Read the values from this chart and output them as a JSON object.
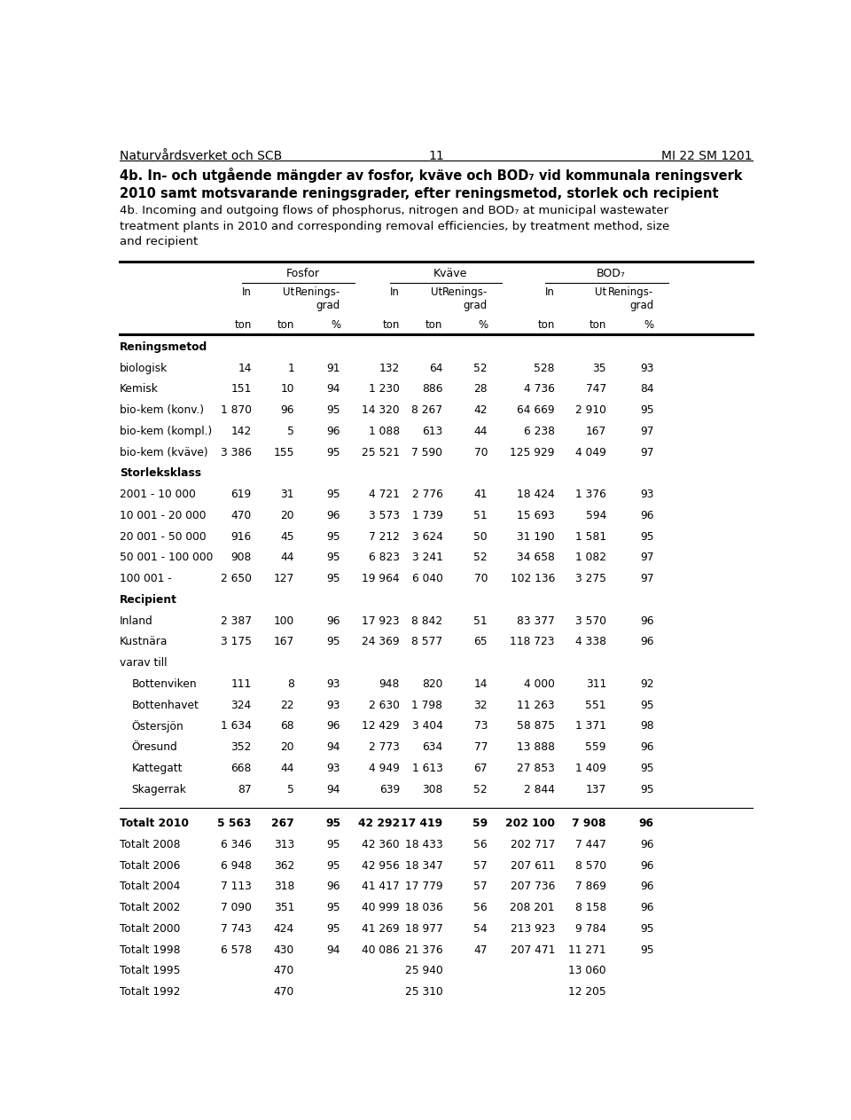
{
  "header_left": "Naturvårdsverket och SCB",
  "header_center": "11",
  "header_right": "MI 22 SM 1201",
  "title_sv": "4b. In- och utgående mängder av fosfor, kväve och BOD₇ vid kommunala reningsverk\n2010 samt motsvarande reningsgrader, efter reningsmetod, storlek och recipient",
  "title_en": "4b. Incoming and outgoing flows of phosphorus, nitrogen and BOD₇ at municipal wastewater\ntreatment plants in 2010 and corresponding removal efficiencies, by treatment method, size\nand recipient",
  "sections": [
    {
      "name": "Reningsmetod",
      "rows": [
        {
          "label": "biologisk",
          "bold": false,
          "indent": false,
          "values": [
            "14",
            "1",
            "91",
            "132",
            "64",
            "52",
            "528",
            "35",
            "93"
          ]
        },
        {
          "label": "Kemisk",
          "bold": false,
          "indent": false,
          "values": [
            "151",
            "10",
            "94",
            "1 230",
            "886",
            "28",
            "4 736",
            "747",
            "84"
          ]
        },
        {
          "label": "bio-kem (konv.)",
          "bold": false,
          "indent": false,
          "values": [
            "1 870",
            "96",
            "95",
            "14 320",
            "8 267",
            "42",
            "64 669",
            "2 910",
            "95"
          ]
        },
        {
          "label": "bio-kem (kompl.)",
          "bold": false,
          "indent": false,
          "values": [
            "142",
            "5",
            "96",
            "1 088",
            "613",
            "44",
            "6 238",
            "167",
            "97"
          ]
        },
        {
          "label": "bio-kem (kväve)",
          "bold": false,
          "indent": false,
          "values": [
            "3 386",
            "155",
            "95",
            "25 521",
            "7 590",
            "70",
            "125 929",
            "4 049",
            "97"
          ]
        }
      ]
    },
    {
      "name": "Storleksklass",
      "rows": [
        {
          "label": "2001 - 10 000",
          "bold": false,
          "indent": false,
          "values": [
            "619",
            "31",
            "95",
            "4 721",
            "2 776",
            "41",
            "18 424",
            "1 376",
            "93"
          ]
        },
        {
          "label": "10 001 - 20 000",
          "bold": false,
          "indent": false,
          "values": [
            "470",
            "20",
            "96",
            "3 573",
            "1 739",
            "51",
            "15 693",
            "594",
            "96"
          ]
        },
        {
          "label": "20 001 - 50 000",
          "bold": false,
          "indent": false,
          "values": [
            "916",
            "45",
            "95",
            "7 212",
            "3 624",
            "50",
            "31 190",
            "1 581",
            "95"
          ]
        },
        {
          "label": "50 001 - 100 000",
          "bold": false,
          "indent": false,
          "values": [
            "908",
            "44",
            "95",
            "6 823",
            "3 241",
            "52",
            "34 658",
            "1 082",
            "97"
          ]
        },
        {
          "label": "100 001 -",
          "bold": false,
          "indent": false,
          "values": [
            "2 650",
            "127",
            "95",
            "19 964",
            "6 040",
            "70",
            "102 136",
            "3 275",
            "97"
          ]
        }
      ]
    },
    {
      "name": "Recipient",
      "rows": [
        {
          "label": "Inland",
          "bold": false,
          "indent": false,
          "values": [
            "2 387",
            "100",
            "96",
            "17 923",
            "8 842",
            "51",
            "83 377",
            "3 570",
            "96"
          ]
        },
        {
          "label": "Kustnära",
          "bold": false,
          "indent": false,
          "values": [
            "3 175",
            "167",
            "95",
            "24 369",
            "8 577",
            "65",
            "118 723",
            "4 338",
            "96"
          ]
        },
        {
          "label": "varav till",
          "bold": false,
          "indent": false,
          "values": [
            "",
            "",
            "",
            "",
            "",
            "",
            "",
            "",
            ""
          ]
        },
        {
          "label": "Bottenviken",
          "bold": false,
          "indent": true,
          "values": [
            "111",
            "8",
            "93",
            "948",
            "820",
            "14",
            "4 000",
            "311",
            "92"
          ]
        },
        {
          "label": "Bottenhavet",
          "bold": false,
          "indent": true,
          "values": [
            "324",
            "22",
            "93",
            "2 630",
            "1 798",
            "32",
            "11 263",
            "551",
            "95"
          ]
        },
        {
          "label": "Östersjön",
          "bold": false,
          "indent": true,
          "values": [
            "1 634",
            "68",
            "96",
            "12 429",
            "3 404",
            "73",
            "58 875",
            "1 371",
            "98"
          ]
        },
        {
          "label": "Öresund",
          "bold": false,
          "indent": true,
          "values": [
            "352",
            "20",
            "94",
            "2 773",
            "634",
            "77",
            "13 888",
            "559",
            "96"
          ]
        },
        {
          "label": "Kattegatt",
          "bold": false,
          "indent": true,
          "values": [
            "668",
            "44",
            "93",
            "4 949",
            "1 613",
            "67",
            "27 853",
            "1 409",
            "95"
          ]
        },
        {
          "label": "Skagerrak",
          "bold": false,
          "indent": true,
          "values": [
            "87",
            "5",
            "94",
            "639",
            "308",
            "52",
            "2 844",
            "137",
            "95"
          ]
        }
      ]
    }
  ],
  "totals": [
    {
      "label": "Totalt 2010",
      "bold": true,
      "values": [
        "5 563",
        "267",
        "95",
        "42 292",
        "17 419",
        "59",
        "202 100",
        "7 908",
        "96"
      ]
    },
    {
      "label": "Totalt 2008",
      "bold": false,
      "values": [
        "6 346",
        "313",
        "95",
        "42 360",
        "18 433",
        "56",
        "202 717",
        "7 447",
        "96"
      ]
    },
    {
      "label": "Totalt 2006",
      "bold": false,
      "values": [
        "6 948",
        "362",
        "95",
        "42 956",
        "18 347",
        "57",
        "207 611",
        "8 570",
        "96"
      ]
    },
    {
      "label": "Totalt 2004",
      "bold": false,
      "values": [
        "7 113",
        "318",
        "96",
        "41 417",
        "17 779",
        "57",
        "207 736",
        "7 869",
        "96"
      ]
    },
    {
      "label": "Totalt 2002",
      "bold": false,
      "values": [
        "7 090",
        "351",
        "95",
        "40 999",
        "18 036",
        "56",
        "208 201",
        "8 158",
        "96"
      ]
    },
    {
      "label": "Totalt 2000",
      "bold": false,
      "values": [
        "7 743",
        "424",
        "95",
        "41 269",
        "18 977",
        "54",
        "213 923",
        "9 784",
        "95"
      ]
    },
    {
      "label": "Totalt 1998",
      "bold": false,
      "values": [
        "6 578",
        "430",
        "94",
        "40 086",
        "21 376",
        "47",
        "207 471",
        "11 271",
        "95"
      ]
    },
    {
      "label": "Totalt 1995",
      "bold": false,
      "values": [
        "",
        "470",
        "",
        "",
        "25 940",
        "",
        "",
        "13 060",
        ""
      ]
    },
    {
      "label": "Totalt 1992",
      "bold": false,
      "values": [
        "",
        "470",
        "",
        "",
        "25 310",
        "",
        "",
        "12 205",
        ""
      ]
    }
  ]
}
